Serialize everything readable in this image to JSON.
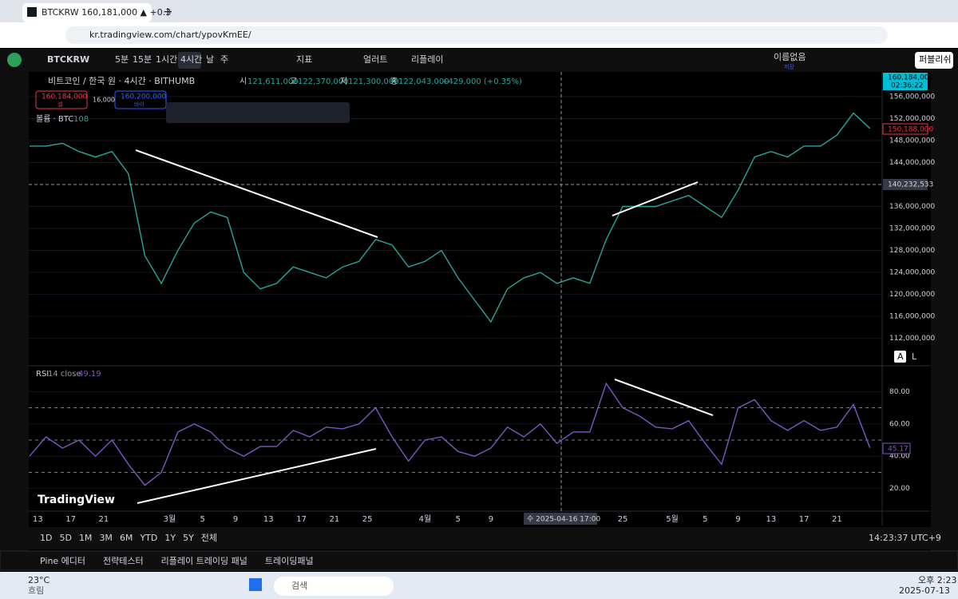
{
  "browser": {
    "tab_title": "BTCKRW 160,181,000 ▲ +0.3",
    "url": "kr.tradingview.com/chart/ypovKmEE/"
  },
  "toolbar": {
    "symbol": "BTCKRW",
    "intervals": [
      "5분",
      "15분",
      "1시간",
      "4시간",
      "날",
      "주"
    ],
    "indicators": "지표",
    "alert": "얼러트",
    "replay": "리플레이",
    "layout_name": "이름없음",
    "saved": "저장",
    "publish": "퍼블리쉬"
  },
  "legend": {
    "title": "비트코인 / 한국 원 · 4시간 · BITHUMB",
    "ohlc": [
      {
        "k": "시",
        "v": "121,611,000"
      },
      {
        "k": "고",
        "v": "122,370,000"
      },
      {
        "k": "저",
        "v": "121,300,000"
      },
      {
        "k": "종",
        "v": "122,043,000"
      }
    ],
    "change": "+429,000 (+0.35%)",
    "sell_price": "160,184,000",
    "sell": "셀",
    "spread": "16,000",
    "buy_price": "160,200,000",
    "buy": "바이",
    "volume": "볼륨 · BTC",
    "volume_value": "108",
    "rsi": "RSI",
    "rsi_params": "14 close",
    "rsi_value": "49.19"
  },
  "axis_labels": {
    "last_price": "160,184,000",
    "countdown": "02:36:22",
    "prev_close": "150,188,000",
    "crosshair_price": "140,232,533",
    "rsi_last": "45.17",
    "crosshair_time": "수 2025-04-16   17:00",
    "auto": "A",
    "log": "L",
    "logo": "TradingView"
  },
  "chart_data": [
    {
      "type": "line",
      "x": [
        "2025-02-12",
        "2025-02-14",
        "2025-02-16",
        "2025-02-18",
        "2025-02-20",
        "2025-02-22",
        "2025-02-24",
        "2025-02-26",
        "2025-02-28",
        "2025-03-02",
        "2025-03-04",
        "2025-03-06",
        "2025-03-08",
        "2025-03-10",
        "2025-03-12",
        "2025-03-14",
        "2025-03-16",
        "2025-03-18",
        "2025-03-20",
        "2025-03-22",
        "2025-03-24",
        "2025-03-26",
        "2025-03-28",
        "2025-03-30",
        "2025-04-01",
        "2025-04-03",
        "2025-04-05",
        "2025-04-07",
        "2025-04-09",
        "2025-04-11",
        "2025-04-13",
        "2025-04-15",
        "2025-04-17",
        "2025-04-19",
        "2025-04-21",
        "2025-04-23",
        "2025-04-25",
        "2025-04-27",
        "2025-04-29",
        "2025-05-01",
        "2025-05-03",
        "2025-05-05",
        "2025-05-07",
        "2025-05-09",
        "2025-05-11",
        "2025-05-13",
        "2025-05-15",
        "2025-05-17",
        "2025-05-19",
        "2025-05-21",
        "2025-05-23",
        "2025-05-25"
      ],
      "series": [
        {
          "name": "BTCKRW",
          "color": "#26a69a",
          "values": [
            147000000,
            147000000,
            147500000,
            146000000,
            145000000,
            146000000,
            142000000,
            127000000,
            122000000,
            128000000,
            133000000,
            135000000,
            134000000,
            124000000,
            121000000,
            122000000,
            125000000,
            124000000,
            123000000,
            125000000,
            126000000,
            130000000,
            129000000,
            125000000,
            126000000,
            128000000,
            123000000,
            119000000,
            115000000,
            121000000,
            123000000,
            124000000,
            122000000,
            123000000,
            122000000,
            130000000,
            136000000,
            136000000,
            136000000,
            137000000,
            138000000,
            136000000,
            134000000,
            139000000,
            145000000,
            146000000,
            145000000,
            147000000,
            147000000,
            149000000,
            153000000,
            150200000
          ]
        }
      ],
      "xlim": [
        "2025-02-12",
        "2025-05-26"
      ],
      "ylim": [
        107000000,
        160500000
      ],
      "yticks": [
        {
          "value": 156000000,
          "label": "156,000,000"
        },
        {
          "value": 152000000,
          "label": "152,000,000"
        },
        {
          "value": 148000000,
          "label": "148,000,000"
        },
        {
          "value": 144000000,
          "label": "144,000,000"
        },
        {
          "value": 136000000,
          "label": "136,000,000"
        },
        {
          "value": 132000000,
          "label": "132,000,000"
        },
        {
          "value": 128000000,
          "label": "128,000,000"
        },
        {
          "value": 124000000,
          "label": "124,000,000"
        },
        {
          "value": 120000000,
          "label": "120,000,000"
        },
        {
          "value": 116000000,
          "label": "116,000,000"
        },
        {
          "value": 112000000,
          "label": "112,000,000"
        }
      ],
      "xticks": [
        {
          "value": "2025-02-13",
          "label": "13"
        },
        {
          "value": "2025-02-17",
          "label": "17"
        },
        {
          "value": "2025-02-21",
          "label": "21"
        },
        {
          "value": "2025-03-01",
          "label": "3월"
        },
        {
          "value": "2025-03-05",
          "label": "5"
        },
        {
          "value": "2025-03-09",
          "label": "9"
        },
        {
          "value": "2025-03-13",
          "label": "13"
        },
        {
          "value": "2025-03-17",
          "label": "17"
        },
        {
          "value": "2025-03-21",
          "label": "21"
        },
        {
          "value": "2025-03-25",
          "label": "25"
        },
        {
          "value": "2025-04-01",
          "label": "4월"
        },
        {
          "value": "2025-04-05",
          "label": "5"
        },
        {
          "value": "2025-04-09",
          "label": "9"
        },
        {
          "value": "2025-04-25",
          "label": "25"
        },
        {
          "value": "2025-05-01",
          "label": "5월"
        },
        {
          "value": "2025-05-05",
          "label": "5"
        },
        {
          "value": "2025-05-09",
          "label": "9"
        },
        {
          "value": "2025-05-13",
          "label": "13"
        },
        {
          "value": "2025-05-17",
          "label": "17"
        },
        {
          "value": "2025-05-21",
          "label": "21"
        }
      ]
    },
    {
      "type": "line",
      "x": [
        "2025-02-12",
        "2025-02-14",
        "2025-02-16",
        "2025-02-18",
        "2025-02-20",
        "2025-02-22",
        "2025-02-24",
        "2025-02-26",
        "2025-02-28",
        "2025-03-02",
        "2025-03-04",
        "2025-03-06",
        "2025-03-08",
        "2025-03-10",
        "2025-03-12",
        "2025-03-14",
        "2025-03-16",
        "2025-03-18",
        "2025-03-20",
        "2025-03-22",
        "2025-03-24",
        "2025-03-26",
        "2025-03-28",
        "2025-03-30",
        "2025-04-01",
        "2025-04-03",
        "2025-04-05",
        "2025-04-07",
        "2025-04-09",
        "2025-04-11",
        "2025-04-13",
        "2025-04-15",
        "2025-04-17",
        "2025-04-19",
        "2025-04-21",
        "2025-04-23",
        "2025-04-25",
        "2025-04-27",
        "2025-04-29",
        "2025-05-01",
        "2025-05-03",
        "2025-05-05",
        "2025-05-07",
        "2025-05-09",
        "2025-05-11",
        "2025-05-13",
        "2025-05-15",
        "2025-05-17",
        "2025-05-19",
        "2025-05-21",
        "2025-05-23",
        "2025-05-25"
      ],
      "series": [
        {
          "name": "RSI",
          "color": "#7e57c2",
          "values": [
            40,
            52,
            45,
            50,
            40,
            50,
            35,
            22,
            30,
            55,
            60,
            55,
            45,
            40,
            46,
            46,
            56,
            52,
            58,
            57,
            60,
            70,
            52,
            37,
            50,
            52,
            43,
            40,
            45,
            58,
            52,
            60,
            48,
            55,
            55,
            85,
            70,
            65,
            58,
            57,
            62,
            48,
            35,
            70,
            75,
            62,
            56,
            62,
            56,
            58,
            72,
            45.17
          ]
        }
      ],
      "xlim": [
        "2025-02-12",
        "2025-05-26"
      ],
      "ylim": [
        6,
        95
      ],
      "yticks": [
        {
          "value": 80,
          "label": "80.00"
        },
        {
          "value": 60,
          "label": "60.00"
        },
        {
          "value": 40,
          "label": "40.00"
        },
        {
          "value": 20,
          "label": "20.00"
        }
      ],
      "levels": [
        70,
        50,
        30
      ]
    }
  ],
  "bottom": {
    "ranges": [
      "1D",
      "5D",
      "1M",
      "3M",
      "6M",
      "YTD",
      "1Y",
      "5Y",
      "전체"
    ],
    "clock": "14:23:37 UTC+9",
    "tabs": [
      "Pine 에디터",
      "전략테스터",
      "리플레이 트레이딩 패널",
      "트레이딩패널"
    ]
  },
  "taskbar": {
    "temp": "23°C",
    "weather": "흐림",
    "search": "검색",
    "time": "오후 2:23",
    "date": "2025-07-13"
  }
}
